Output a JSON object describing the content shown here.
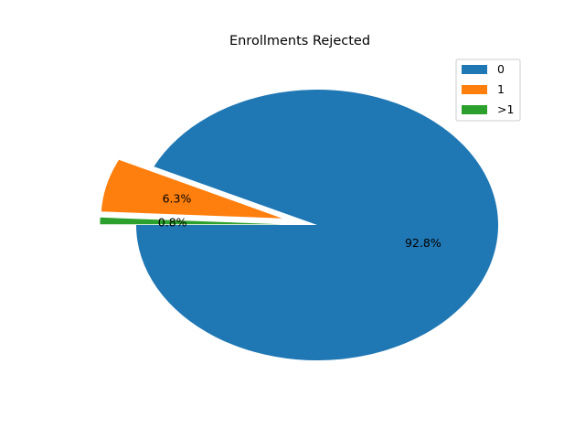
{
  "chart_data": {
    "type": "pie",
    "title": "Enrollments Rejected",
    "slices": [
      {
        "label": "0",
        "value": 92.8,
        "pct_label": "92.8%",
        "color": "#1f77b4",
        "exploded": false
      },
      {
        "label": "1",
        "value": 6.3,
        "pct_label": "6.3%",
        "color": "#ff7f0e",
        "exploded": true
      },
      {
        "label": ">1",
        "value": 0.8,
        "pct_label": "0.8%",
        "color": "#2ca02c",
        "exploded": true
      }
    ],
    "start_angle_deg": 180,
    "direction": "counterclockwise",
    "legend": {
      "position": "top-right",
      "entries": [
        "0",
        "1",
        ">1"
      ]
    }
  }
}
